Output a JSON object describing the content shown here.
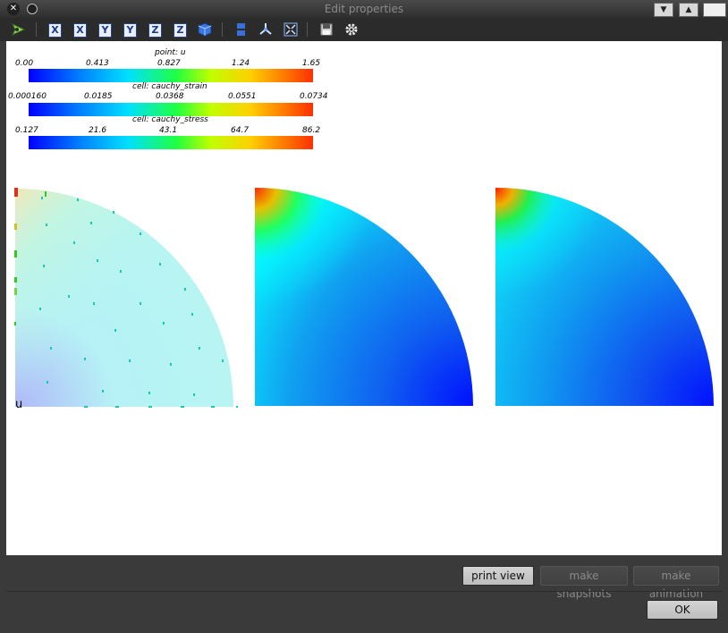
{
  "window": {
    "title": "Edit properties"
  },
  "toolbar": {
    "axis_buttons": [
      "X",
      "X",
      "Y",
      "Y",
      "Z",
      "Z"
    ]
  },
  "colorbars": [
    {
      "title": "point: u",
      "ticks": [
        "0.00",
        "0.413",
        "0.827",
        "1.24",
        "1.65"
      ]
    },
    {
      "title": "cell: cauchy_strain",
      "ticks": [
        "0.000160",
        "0.0185",
        "0.0368",
        "0.0551",
        "0.0734"
      ]
    },
    {
      "title": "cell: cauchy_stress",
      "ticks": [
        "0.127",
        "21.6",
        "43.1",
        "64.7",
        "86.2"
      ]
    }
  ],
  "views": {
    "view1_label": "u"
  },
  "buttons": {
    "print_view": "print view",
    "make_snapshots": "make snapshots",
    "make_animation": "make animation",
    "ok": "OK"
  },
  "colors": {
    "window_bg": "#3a3a3a",
    "canvas_bg": "#ffffff",
    "toolbar_bg": "#2b2b2b"
  }
}
